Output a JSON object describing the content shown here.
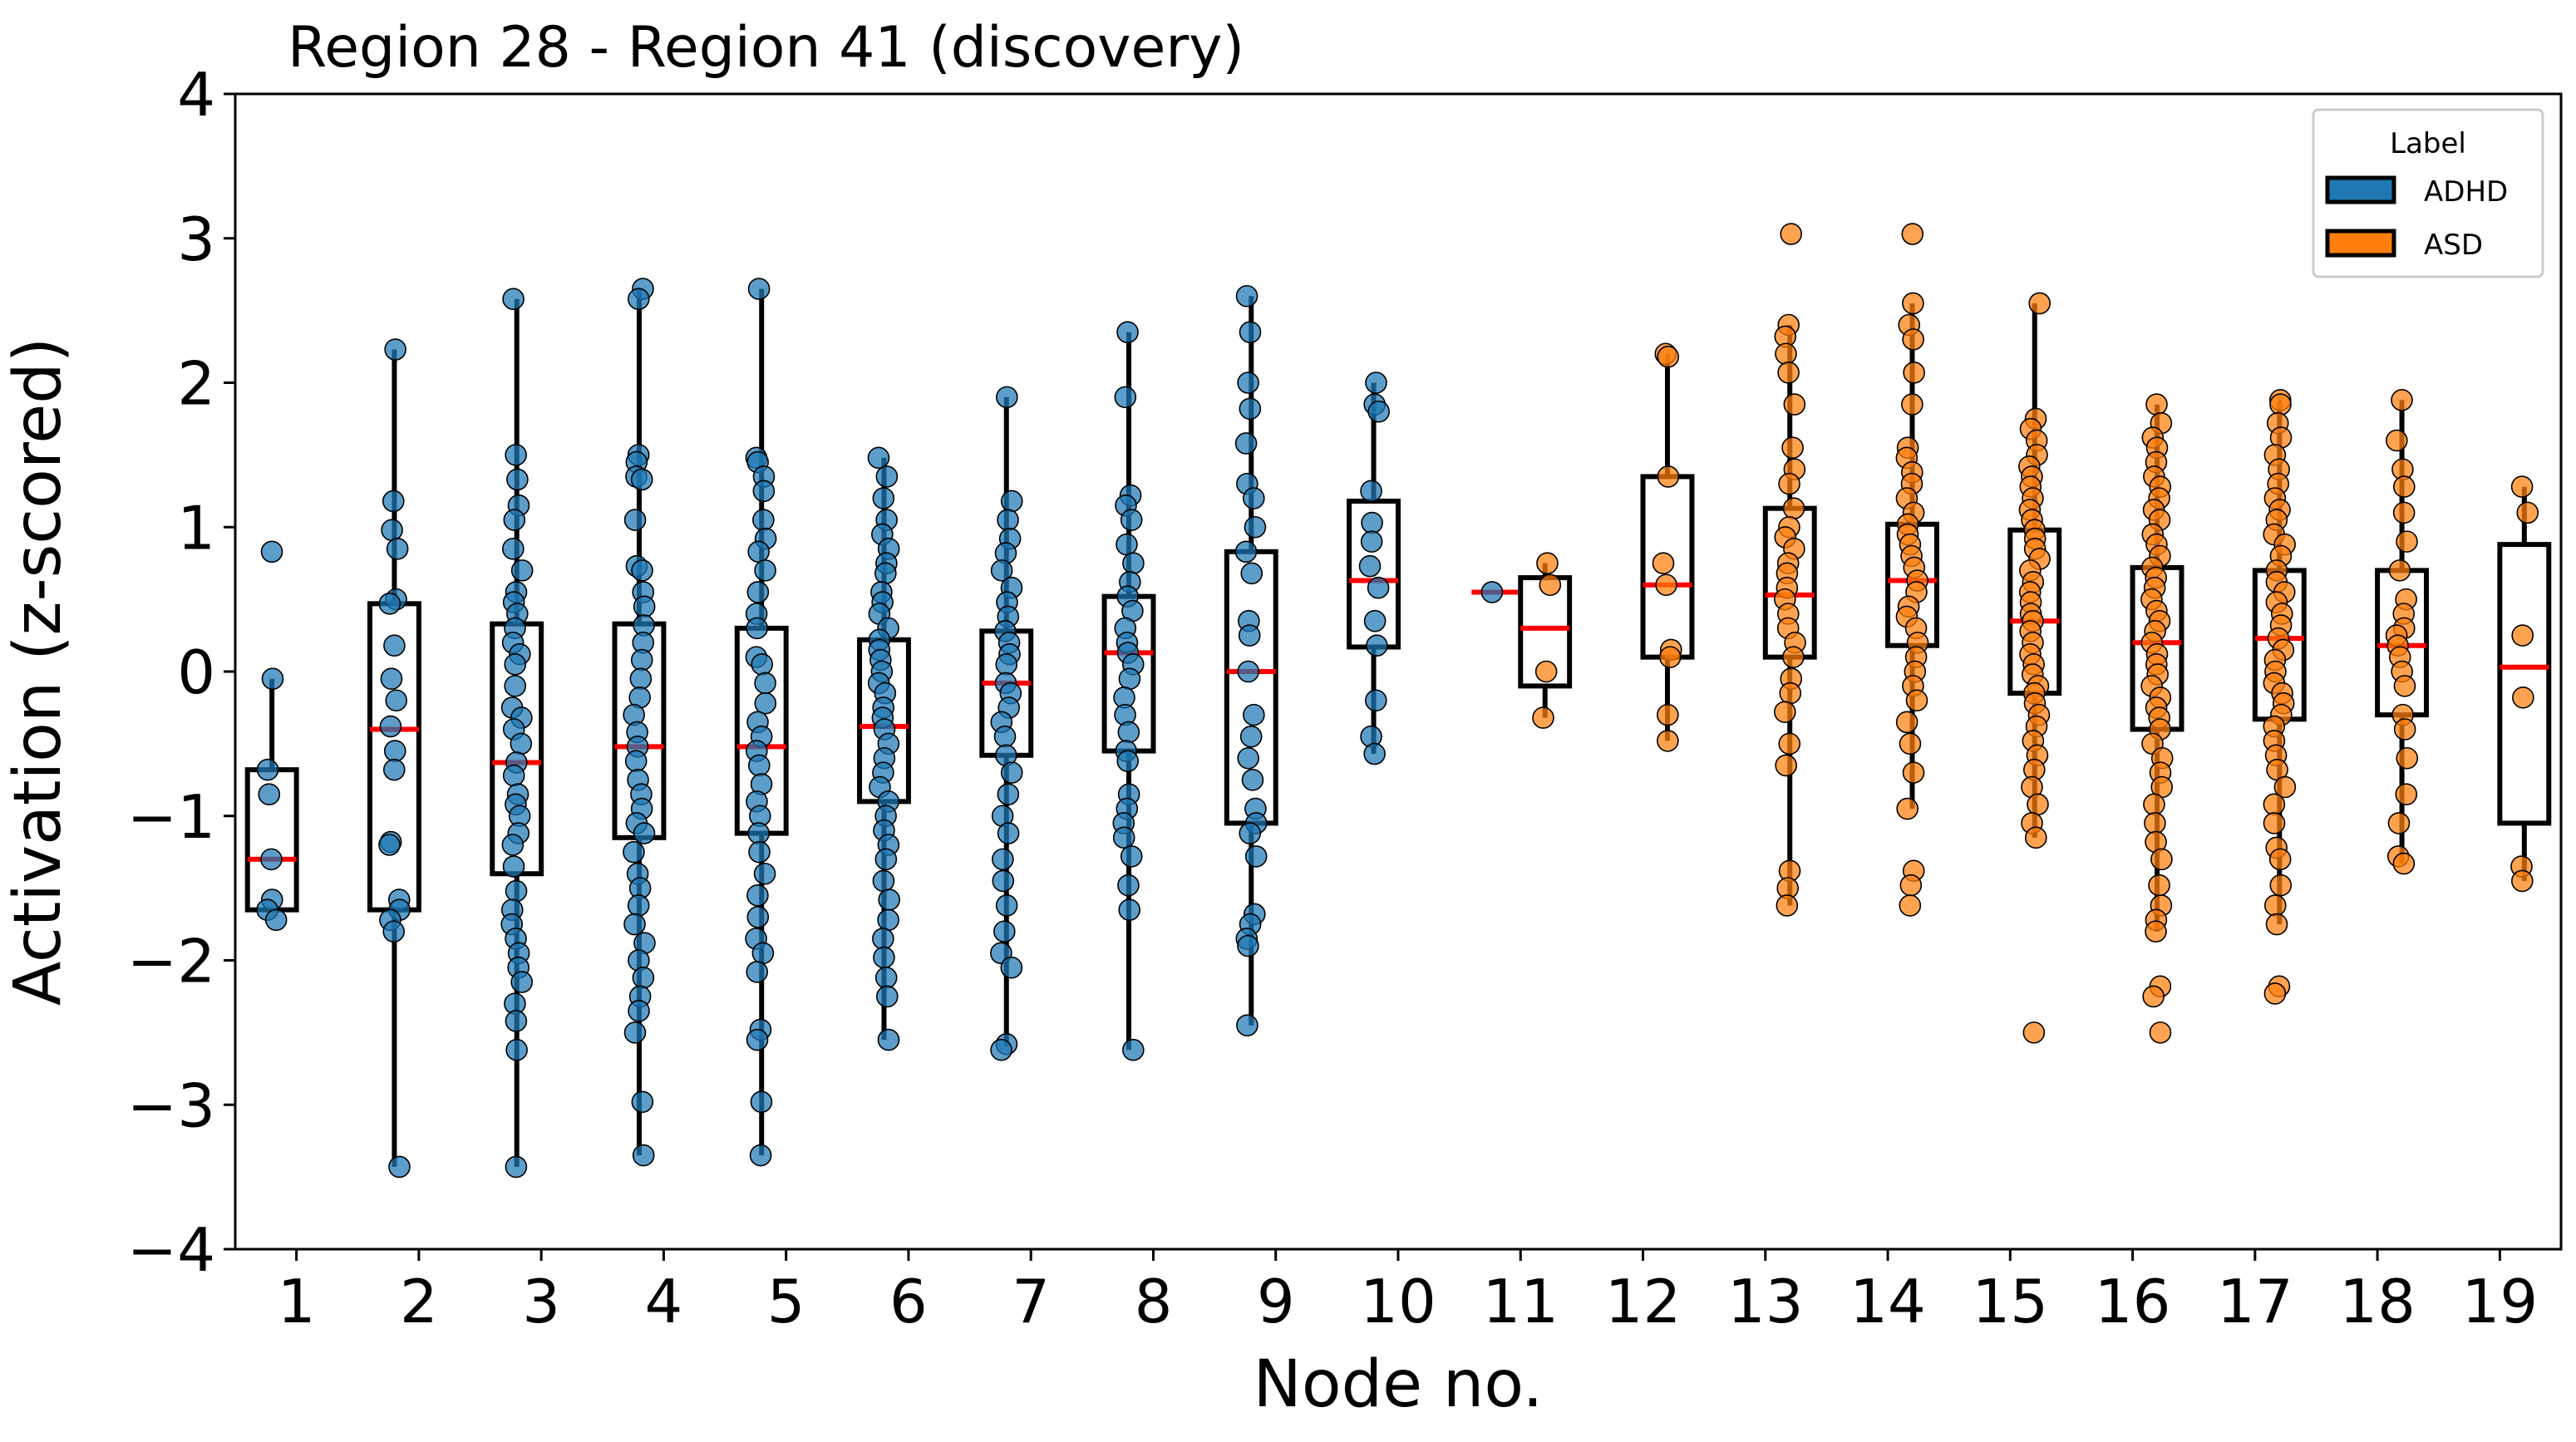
{
  "chart_data": {
    "type": "box-strip",
    "title": "Region 28 - Region 41 (discovery)",
    "xlabel": "Node no.",
    "ylabel": "Activation (z-scored)",
    "ylim": [
      -4,
      4
    ],
    "yticks": [
      -4,
      -3,
      -2,
      -1,
      0,
      1,
      2,
      3,
      4
    ],
    "ytick_labels": [
      "−4",
      "−3",
      "−2",
      "−1",
      "0",
      "1",
      "2",
      "3",
      "4"
    ],
    "categories": [
      "1",
      "2",
      "3",
      "4",
      "5",
      "6",
      "7",
      "8",
      "9",
      "10",
      "11",
      "12",
      "13",
      "14",
      "15",
      "16",
      "17",
      "18",
      "19"
    ],
    "legend": {
      "title": "Label",
      "position": "top-right",
      "entries": [
        {
          "name": "ADHD",
          "color": "#1f77b4"
        },
        {
          "name": "ASD",
          "color": "#ff7f0e"
        }
      ]
    },
    "colors": {
      "ADHD": "#1f77b4",
      "ASD": "#ff7f0e",
      "median": "#ff0000",
      "box": "#000000"
    },
    "boxes": [
      {
        "node": 1,
        "label": "ADHD",
        "q1": -1.65,
        "median": -1.3,
        "q3": -0.68,
        "whislo": -1.65,
        "whishi": -0.05
      },
      {
        "node": 2,
        "label": "ADHD",
        "q1": -1.65,
        "median": -0.4,
        "q3": 0.47,
        "whislo": -3.43,
        "whishi": 2.23
      },
      {
        "node": 3,
        "label": "ADHD",
        "q1": -1.4,
        "median": -0.63,
        "q3": 0.33,
        "whislo": -3.43,
        "whishi": 2.58
      },
      {
        "node": 4,
        "label": "ADHD",
        "q1": -1.15,
        "median": -0.52,
        "q3": 0.33,
        "whislo": -3.35,
        "whishi": 2.65
      },
      {
        "node": 5,
        "label": "ADHD",
        "q1": -1.12,
        "median": -0.52,
        "q3": 0.3,
        "whislo": -3.35,
        "whishi": 2.65
      },
      {
        "node": 6,
        "label": "ADHD",
        "q1": -0.9,
        "median": -0.38,
        "q3": 0.22,
        "whislo": -2.55,
        "whishi": 1.48
      },
      {
        "node": 7,
        "label": "ADHD",
        "q1": -0.58,
        "median": -0.08,
        "q3": 0.28,
        "whislo": -2.6,
        "whishi": 1.9
      },
      {
        "node": 8,
        "label": "ADHD",
        "q1": -0.55,
        "median": 0.13,
        "q3": 0.52,
        "whislo": -2.62,
        "whishi": 2.35
      },
      {
        "node": 9,
        "label": "ADHD",
        "q1": -1.05,
        "median": 0.0,
        "q3": 0.83,
        "whislo": -2.45,
        "whishi": 2.6
      },
      {
        "node": 10,
        "label": "ADHD",
        "q1": 0.17,
        "median": 0.63,
        "q3": 1.18,
        "whislo": -0.57,
        "whishi": 2.0
      },
      {
        "node": 11,
        "label": "ADHD",
        "single": 0.55
      },
      {
        "node": 11,
        "label": "ASD",
        "q1": -0.1,
        "median": 0.3,
        "q3": 0.65,
        "whislo": -0.32,
        "whishi": 0.75
      },
      {
        "node": 12,
        "label": "ASD",
        "q1": 0.1,
        "median": 0.6,
        "q3": 1.35,
        "whislo": -0.48,
        "whishi": 2.2
      },
      {
        "node": 13,
        "label": "ASD",
        "q1": 0.1,
        "median": 0.53,
        "q3": 1.13,
        "whislo": -1.62,
        "whishi": 2.4
      },
      {
        "node": 14,
        "label": "ASD",
        "q1": 0.18,
        "median": 0.63,
        "q3": 1.02,
        "whislo": -0.95,
        "whishi": 2.55
      },
      {
        "node": 15,
        "label": "ASD",
        "q1": -0.15,
        "median": 0.35,
        "q3": 0.98,
        "whislo": -1.15,
        "whishi": 2.55
      },
      {
        "node": 16,
        "label": "ASD",
        "q1": -0.4,
        "median": 0.2,
        "q3": 0.72,
        "whislo": -1.8,
        "whishi": 1.85
      },
      {
        "node": 17,
        "label": "ASD",
        "q1": -0.33,
        "median": 0.23,
        "q3": 0.7,
        "whislo": -1.75,
        "whishi": 1.88
      },
      {
        "node": 18,
        "label": "ASD",
        "q1": -0.3,
        "median": 0.18,
        "q3": 0.7,
        "whislo": -1.33,
        "whishi": 1.88
      },
      {
        "node": 19,
        "label": "ASD",
        "q1": -1.05,
        "median": 0.03,
        "q3": 0.88,
        "whislo": -1.45,
        "whishi": 1.28
      }
    ],
    "points": [
      {
        "node": 1,
        "label": "ADHD",
        "values": [
          0.83,
          -0.05,
          -0.68,
          -0.85,
          -1.3,
          -1.58,
          -1.65,
          -1.72
        ]
      },
      {
        "node": 2,
        "label": "ADHD",
        "values": [
          2.23,
          1.18,
          0.98,
          0.85,
          0.5,
          0.47,
          0.18,
          -0.05,
          -0.2,
          -0.38,
          -0.55,
          -0.68,
          -1.18,
          -1.2,
          -1.58,
          -1.65,
          -1.72,
          -1.8,
          -3.43
        ]
      },
      {
        "node": 3,
        "label": "ADHD",
        "values": [
          2.58,
          1.5,
          1.33,
          1.15,
          1.05,
          0.85,
          0.7,
          0.55,
          0.48,
          0.4,
          0.3,
          0.2,
          0.12,
          0.05,
          -0.1,
          -0.25,
          -0.32,
          -0.4,
          -0.5,
          -0.63,
          -0.72,
          -0.85,
          -0.92,
          -1.0,
          -1.12,
          -1.2,
          -1.35,
          -1.52,
          -1.65,
          -1.75,
          -1.85,
          -1.95,
          -2.05,
          -2.15,
          -2.3,
          -2.42,
          -2.62,
          -3.43
        ]
      },
      {
        "node": 4,
        "label": "ADHD",
        "values": [
          2.65,
          2.58,
          1.5,
          1.45,
          1.35,
          1.33,
          1.05,
          0.73,
          0.7,
          0.55,
          0.45,
          0.32,
          0.2,
          0.08,
          -0.05,
          -0.18,
          -0.3,
          -0.42,
          -0.52,
          -0.62,
          -0.75,
          -0.85,
          -0.95,
          -1.05,
          -1.12,
          -1.25,
          -1.4,
          -1.5,
          -1.62,
          -1.75,
          -1.88,
          -2.0,
          -2.12,
          -2.25,
          -2.35,
          -2.5,
          -2.98,
          -3.35
        ]
      },
      {
        "node": 5,
        "label": "ADHD",
        "values": [
          2.65,
          1.48,
          1.45,
          1.35,
          1.25,
          1.05,
          0.92,
          0.83,
          0.7,
          0.55,
          0.4,
          0.3,
          0.1,
          0.05,
          -0.08,
          -0.22,
          -0.35,
          -0.45,
          -0.55,
          -0.65,
          -0.78,
          -0.9,
          -1.0,
          -1.12,
          -1.25,
          -1.4,
          -1.55,
          -1.7,
          -1.85,
          -1.95,
          -2.08,
          -2.48,
          -2.55,
          -2.98,
          -3.35
        ]
      },
      {
        "node": 6,
        "label": "ADHD",
        "values": [
          1.48,
          1.35,
          1.2,
          1.05,
          0.95,
          0.85,
          0.75,
          0.68,
          0.55,
          0.48,
          0.4,
          0.3,
          0.22,
          0.15,
          0.08,
          0.0,
          -0.08,
          -0.15,
          -0.25,
          -0.32,
          -0.4,
          -0.5,
          -0.6,
          -0.7,
          -0.8,
          -0.9,
          -1.0,
          -1.1,
          -1.2,
          -1.3,
          -1.45,
          -1.58,
          -1.72,
          -1.85,
          -1.98,
          -2.12,
          -2.25,
          -2.55
        ]
      },
      {
        "node": 7,
        "label": "ADHD",
        "values": [
          1.9,
          1.18,
          1.05,
          0.92,
          0.82,
          0.7,
          0.58,
          0.48,
          0.38,
          0.28,
          0.2,
          0.12,
          0.05,
          -0.08,
          -0.15,
          -0.25,
          -0.35,
          -0.45,
          -0.58,
          -0.7,
          -0.85,
          -1.0,
          -1.12,
          -1.3,
          -1.45,
          -1.62,
          -1.8,
          -1.95,
          -2.05,
          -2.58,
          -2.62
        ]
      },
      {
        "node": 8,
        "label": "ADHD",
        "values": [
          2.35,
          1.9,
          1.22,
          1.15,
          1.05,
          0.88,
          0.75,
          0.62,
          0.52,
          0.42,
          0.3,
          0.2,
          0.13,
          0.05,
          -0.05,
          -0.18,
          -0.3,
          -0.42,
          -0.55,
          -0.62,
          -0.85,
          -0.95,
          -1.05,
          -1.15,
          -1.28,
          -1.48,
          -1.65,
          -2.62
        ]
      },
      {
        "node": 9,
        "label": "ADHD",
        "values": [
          2.6,
          2.35,
          2.0,
          1.82,
          1.58,
          1.3,
          1.2,
          1.0,
          0.83,
          0.68,
          0.35,
          0.25,
          0.0,
          -0.3,
          -0.45,
          -0.6,
          -0.75,
          -0.95,
          -1.05,
          -1.12,
          -1.28,
          -1.68,
          -1.75,
          -1.85,
          -1.9,
          -2.45
        ]
      },
      {
        "node": 10,
        "label": "ADHD",
        "values": [
          2.0,
          1.85,
          1.8,
          1.25,
          1.03,
          0.9,
          0.73,
          0.58,
          0.35,
          0.18,
          -0.2,
          -0.45,
          -0.57
        ]
      },
      {
        "node": 11,
        "label": "ADHD",
        "values": [
          0.55
        ]
      },
      {
        "node": 11,
        "label": "ASD",
        "values": [
          0.75,
          0.6,
          0.0,
          -0.32
        ]
      },
      {
        "node": 12,
        "label": "ASD",
        "values": [
          2.2,
          2.18,
          1.35,
          0.75,
          0.6,
          0.15,
          0.1,
          -0.3,
          -0.48
        ]
      },
      {
        "node": 13,
        "label": "ASD",
        "values": [
          3.03,
          2.4,
          2.32,
          2.2,
          2.07,
          1.85,
          1.55,
          1.4,
          1.3,
          1.13,
          1.0,
          0.93,
          0.85,
          0.75,
          0.68,
          0.58,
          0.5,
          0.4,
          0.3,
          0.2,
          0.1,
          -0.05,
          -0.15,
          -0.28,
          -0.5,
          -0.65,
          -1.38,
          -1.5,
          -1.62
        ]
      },
      {
        "node": 14,
        "label": "ASD",
        "values": [
          3.03,
          2.55,
          2.4,
          2.3,
          2.07,
          1.85,
          1.55,
          1.48,
          1.38,
          1.3,
          1.2,
          1.1,
          1.02,
          0.95,
          0.88,
          0.8,
          0.72,
          0.63,
          0.55,
          0.45,
          0.38,
          0.3,
          0.2,
          0.1,
          0.0,
          -0.1,
          -0.2,
          -0.35,
          -0.5,
          -0.7,
          -0.95,
          -1.38,
          -1.48,
          -1.62
        ]
      },
      {
        "node": 15,
        "label": "ASD",
        "values": [
          2.55,
          1.75,
          1.68,
          1.6,
          1.5,
          1.42,
          1.35,
          1.28,
          1.2,
          1.12,
          1.05,
          0.98,
          0.92,
          0.85,
          0.78,
          0.7,
          0.62,
          0.55,
          0.48,
          0.4,
          0.35,
          0.28,
          0.2,
          0.12,
          0.05,
          -0.02,
          -0.1,
          -0.15,
          -0.22,
          -0.3,
          -0.38,
          -0.48,
          -0.58,
          -0.68,
          -0.8,
          -0.92,
          -1.05,
          -1.15,
          -2.5
        ]
      },
      {
        "node": 16,
        "label": "ASD",
        "values": [
          1.85,
          1.72,
          1.62,
          1.55,
          1.45,
          1.35,
          1.28,
          1.2,
          1.12,
          1.05,
          0.95,
          0.88,
          0.8,
          0.72,
          0.65,
          0.58,
          0.5,
          0.42,
          0.35,
          0.28,
          0.2,
          0.12,
          0.05,
          -0.02,
          -0.1,
          -0.18,
          -0.25,
          -0.32,
          -0.4,
          -0.5,
          -0.6,
          -0.7,
          -0.8,
          -0.92,
          -1.05,
          -1.18,
          -1.3,
          -1.48,
          -1.62,
          -1.72,
          -1.8,
          -2.18,
          -2.25,
          -2.5
        ]
      },
      {
        "node": 17,
        "label": "ASD",
        "values": [
          1.88,
          1.85,
          1.72,
          1.62,
          1.5,
          1.4,
          1.3,
          1.2,
          1.12,
          1.05,
          0.95,
          0.88,
          0.8,
          0.7,
          0.62,
          0.55,
          0.48,
          0.4,
          0.32,
          0.23,
          0.15,
          0.08,
          0.0,
          -0.08,
          -0.15,
          -0.22,
          -0.3,
          -0.38,
          -0.48,
          -0.58,
          -0.68,
          -0.8,
          -0.92,
          -1.05,
          -1.22,
          -1.3,
          -1.48,
          -1.62,
          -1.75,
          -2.18,
          -2.23
        ]
      },
      {
        "node": 18,
        "label": "ASD",
        "values": [
          1.88,
          1.6,
          1.4,
          1.28,
          1.1,
          0.9,
          0.7,
          0.5,
          0.4,
          0.3,
          0.25,
          0.18,
          0.1,
          0.0,
          -0.1,
          -0.3,
          -0.4,
          -0.6,
          -0.85,
          -1.05,
          -1.28,
          -1.33
        ]
      },
      {
        "node": 19,
        "label": "ASD",
        "values": [
          1.28,
          1.1,
          0.25,
          -0.18,
          -1.35,
          -1.45
        ]
      }
    ]
  }
}
